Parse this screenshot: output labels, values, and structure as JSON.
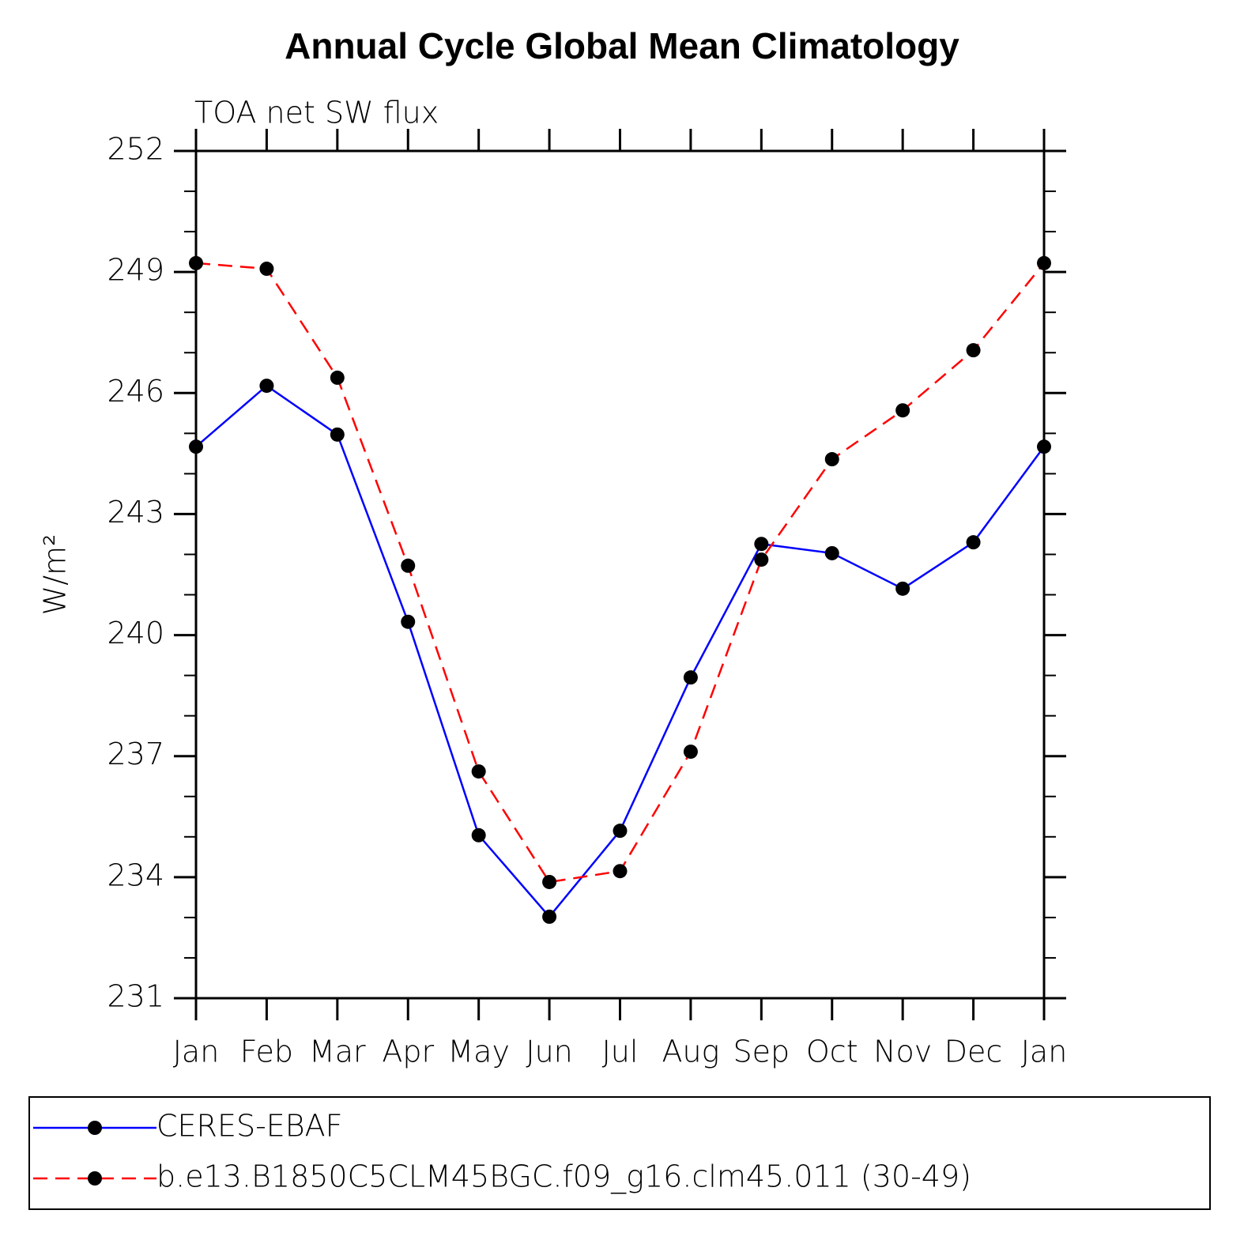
{
  "chart_data": {
    "type": "line",
    "title": "Annual Cycle Global Mean Climatology",
    "subtitle": "TOA net SW flux",
    "ylabel": "W/m²",
    "categories": [
      "Jan",
      "Feb",
      "Mar",
      "Apr",
      "May",
      "Jun",
      "Jul",
      "Aug",
      "Sep",
      "Oct",
      "Nov",
      "Dec",
      "Jan"
    ],
    "series": [
      {
        "name": "CERES-EBAF",
        "color": "#0000ff",
        "dash": false,
        "values": [
          244.67,
          246.18,
          244.97,
          240.33,
          235.04,
          233.02,
          235.15,
          238.95,
          242.26,
          242.03,
          241.15,
          242.3,
          244.67
        ]
      },
      {
        "name": "b.e13.B1850C5CLM45BGC.f09_g16.clm45.011 (30-49)",
        "color": "#ff0000",
        "dash": true,
        "values": [
          249.22,
          249.08,
          246.38,
          241.72,
          236.62,
          233.88,
          234.15,
          237.11,
          241.87,
          244.36,
          245.57,
          247.06,
          249.22
        ]
      }
    ],
    "ylim": [
      231,
      252
    ],
    "yticks": [
      231,
      234,
      237,
      240,
      243,
      246,
      249,
      252
    ],
    "yminorticks": [
      232,
      233,
      235,
      236,
      238,
      239,
      241,
      242,
      244,
      245,
      247,
      248,
      250,
      251
    ]
  }
}
